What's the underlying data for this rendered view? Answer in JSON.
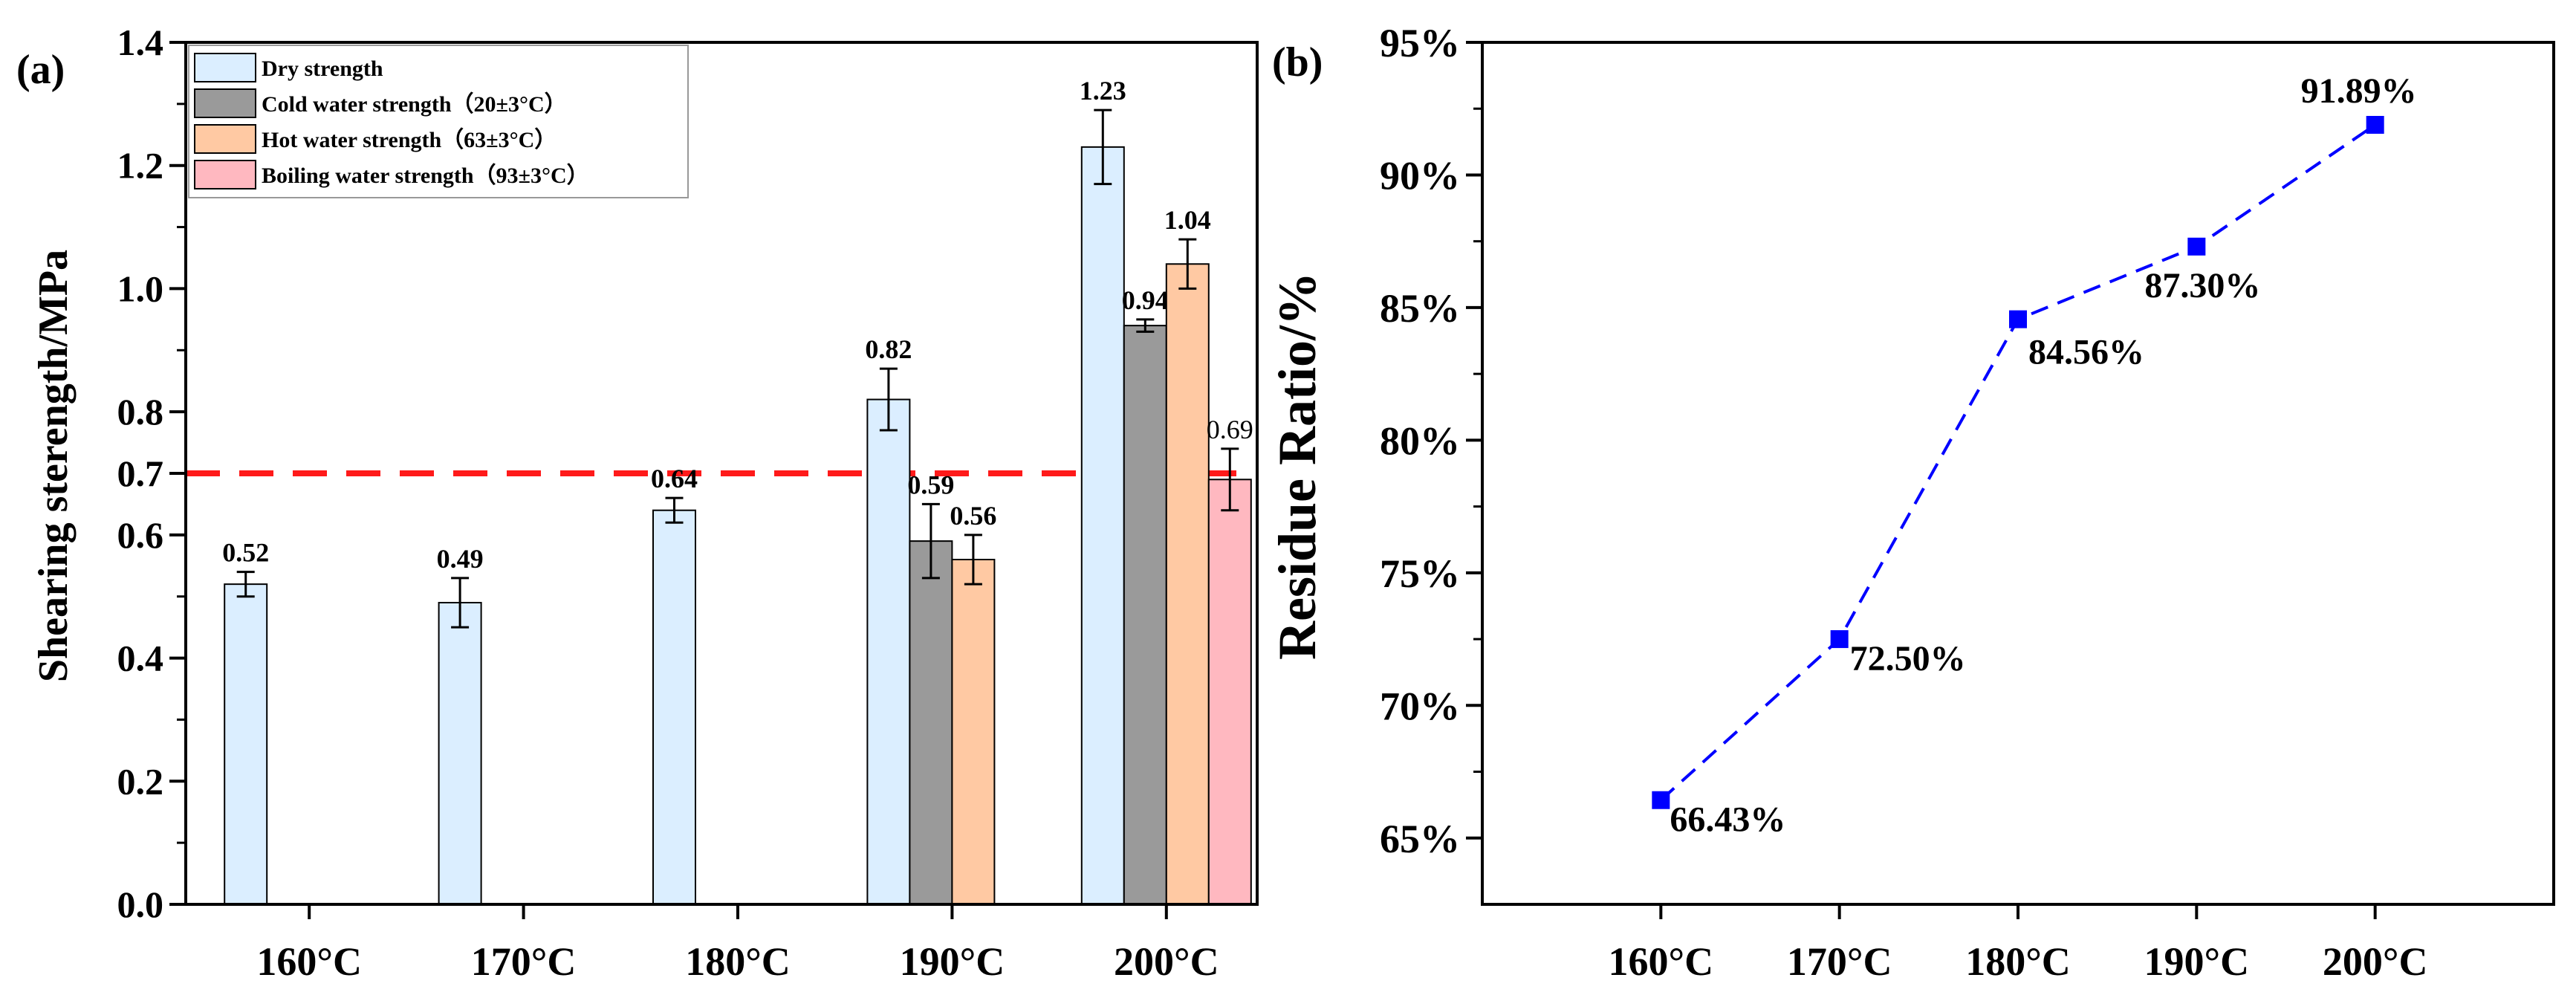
{
  "chart_data": [
    {
      "type": "bar",
      "panel_label": "(a)",
      "title": "",
      "xlabel": "",
      "ylabel": "Shearing sterength/MPa",
      "ylim": [
        0.0,
        1.4
      ],
      "yticks": [
        "0.0",
        "0.2",
        "0.4",
        "0.6",
        "0.7",
        "0.8",
        "1.0",
        "1.2",
        "1.4"
      ],
      "categories": [
        "160°C",
        "170°C",
        "180°C",
        "190°C",
        "200°C"
      ],
      "threshold": 0.7,
      "series": [
        {
          "name": "Dry strength",
          "color": "#dbeeff",
          "values": [
            0.52,
            0.49,
            0.64,
            0.82,
            1.23
          ],
          "errors": [
            0.02,
            0.04,
            0.02,
            0.05,
            0.06
          ],
          "labels": [
            "0.52",
            "0.49",
            "0.64",
            "0.82",
            "1.23"
          ]
        },
        {
          "name": "Cold water strength（20±3°C）",
          "color": "#9a9a9a",
          "values": [
            null,
            null,
            null,
            0.59,
            0.94
          ],
          "errors": [
            null,
            null,
            null,
            0.06,
            0.01
          ],
          "labels": [
            "",
            "",
            "",
            "0.59",
            "0.94"
          ]
        },
        {
          "name": "Hot water strength（63±3°C）",
          "color": "#ffc9a3",
          "values": [
            null,
            null,
            null,
            0.56,
            1.04
          ],
          "errors": [
            null,
            null,
            null,
            0.04,
            0.04
          ],
          "labels": [
            "",
            "",
            "",
            "0.56",
            "1.04"
          ]
        },
        {
          "name": "Boiling water strength（93±3°C）",
          "color": "#ffb8c0",
          "values": [
            null,
            null,
            null,
            null,
            0.69
          ],
          "errors": [
            null,
            null,
            null,
            null,
            0.05
          ],
          "labels": [
            "",
            "",
            "",
            "",
            "0.69"
          ]
        }
      ]
    },
    {
      "type": "line",
      "panel_label": "(b)",
      "title": "",
      "xlabel": "",
      "ylabel": "Residue Ratio/%",
      "ylim": [
        62.5,
        95
      ],
      "yticks": [
        "65%",
        "70%",
        "75%",
        "80%",
        "85%",
        "90%",
        "95%"
      ],
      "categories": [
        "160°C",
        "170°C",
        "180°C",
        "190°C",
        "200°C"
      ],
      "series": [
        {
          "name": "Residue Ratio",
          "color": "#0000ff",
          "values": [
            66.43,
            72.5,
            84.56,
            87.3,
            91.89
          ],
          "labels": [
            "66.43%",
            "72.50%",
            "84.56%",
            "87.30%",
            "91.89%"
          ]
        }
      ]
    }
  ]
}
